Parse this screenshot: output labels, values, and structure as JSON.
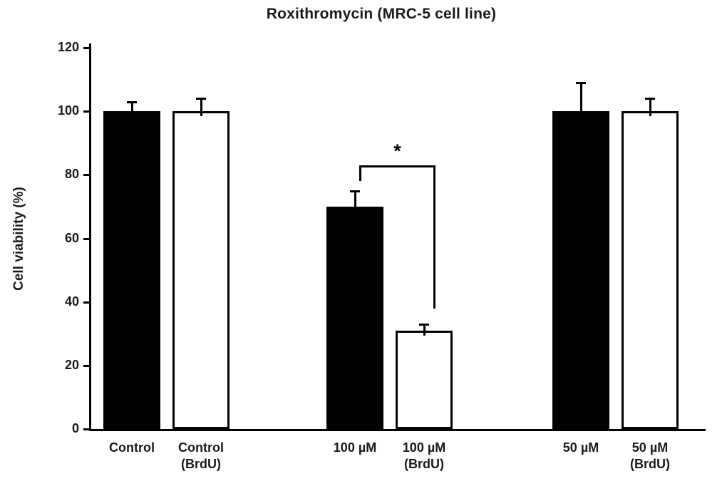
{
  "chart_data": {
    "type": "bar",
    "title": "Roxithromycin (MRC-5 cell line)",
    "ylabel": "Cell viability (%)",
    "xlabel": "",
    "ylim": [
      0,
      120
    ],
    "yticks": [
      0,
      20,
      40,
      60,
      80,
      100,
      120
    ],
    "grid": false,
    "legend": false,
    "categories": [
      "Control",
      "Control (BrdU)",
      "100 µM",
      "100 µM (BrdU)",
      "50 µM",
      "50 µM (BrdU)"
    ],
    "category_label_lines": [
      [
        "Control"
      ],
      [
        "Control",
        "(BrdU)"
      ],
      [
        "100 µM"
      ],
      [
        "100 µM",
        "(BrdU)"
      ],
      [
        "50 µM"
      ],
      [
        "50 µM",
        "(BrdU)"
      ]
    ],
    "series": [
      {
        "name": "Cell viability",
        "values": [
          100,
          100,
          70,
          31,
          100,
          100
        ],
        "errors_plus": [
          3,
          4,
          5,
          2,
          9,
          4
        ]
      }
    ],
    "bar_styles": [
      "solid-black",
      "white-outlined",
      "solid-black",
      "white-outlined",
      "solid-black",
      "white-outlined"
    ],
    "annotations": [
      {
        "type": "significance-bracket",
        "label": "*",
        "between": [
          "100 µM",
          "100 µM (BrdU)"
        ],
        "bracket_top_value": 83,
        "left_drop_to_value": 78,
        "right_drop_to_value": 38
      }
    ]
  },
  "colors": {
    "bar_fill_black": "#000000",
    "bar_fill_white": "#ffffff",
    "bar_border": "#000000",
    "axis": "#000000",
    "text": "#1a1a1a"
  }
}
